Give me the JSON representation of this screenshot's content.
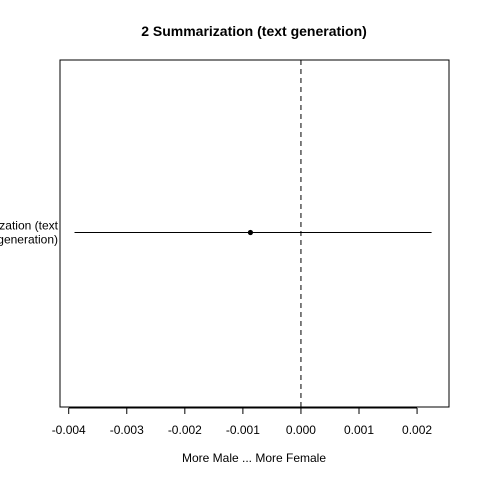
{
  "chart_data": {
    "type": "scatter",
    "title": "2 Summarization (text generation)",
    "xlabel": "More Male ... More Female",
    "ylabel": "",
    "xlim": [
      -0.00415,
      0.00255
    ],
    "x_ticks": [
      -0.004,
      -0.003,
      -0.002,
      -0.001,
      0.0,
      0.001,
      0.002
    ],
    "x_tick_labels": [
      "-0.004",
      "-0.003",
      "-0.002",
      "-0.001",
      "0.000",
      "0.001",
      "0.002"
    ],
    "reference_line_x": 0.0,
    "grid": false,
    "legend": "none",
    "categories": [
      {
        "label_lines": [
          "Summarization (text",
          "generation)"
        ],
        "estimate": -0.00087,
        "ci_low": -0.0039,
        "ci_high": 0.00225
      }
    ]
  }
}
